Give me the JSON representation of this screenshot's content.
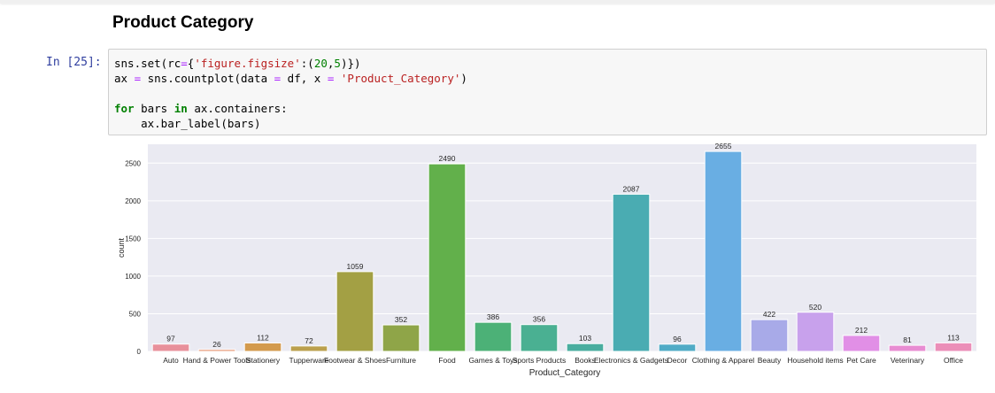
{
  "notebook": {
    "heading": "Product Category",
    "cell": {
      "prompt": "In [25]:",
      "code_lines": [
        "sns.set(rc={'figure.figsize':(20,5)})",
        "ax = sns.countplot(data = df, x = 'Product_Category')",
        "",
        "for bars in ax.containers:",
        "    ax.bar_label(bars)"
      ]
    }
  },
  "chart_data": {
    "type": "bar",
    "title": "",
    "xlabel": "Product_Category",
    "ylabel": "count",
    "ylim": [
      0,
      2750
    ],
    "yticks": [
      0,
      500,
      1000,
      1500,
      2000,
      2500
    ],
    "grid": true,
    "categories": [
      "Auto",
      "Hand & Power Tools",
      "Stationery",
      "Tupperware",
      "Footwear & Shoes",
      "Furniture",
      "Food",
      "Games & Toys",
      "Sports Products",
      "Books",
      "Electronics & Gadgets",
      "Decor",
      "Clothing & Apparel",
      "Beauty",
      "Household items",
      "Pet Care",
      "Veterinary",
      "Office"
    ],
    "values": [
      97,
      26,
      112,
      72,
      1059,
      352,
      2490,
      386,
      356,
      103,
      2087,
      96,
      2655,
      422,
      520,
      212,
      81,
      113
    ],
    "colors": [
      "#e8909b",
      "#e89a78",
      "#d39a4d",
      "#bba04d",
      "#a3a044",
      "#8fa548",
      "#62b04b",
      "#4cb177",
      "#4ab092",
      "#49ad9f",
      "#4aacb2",
      "#50abc6",
      "#69aee3",
      "#a8aae8",
      "#c8a1ec",
      "#e18fe6",
      "#e88cd2",
      "#eb8eb8"
    ]
  }
}
